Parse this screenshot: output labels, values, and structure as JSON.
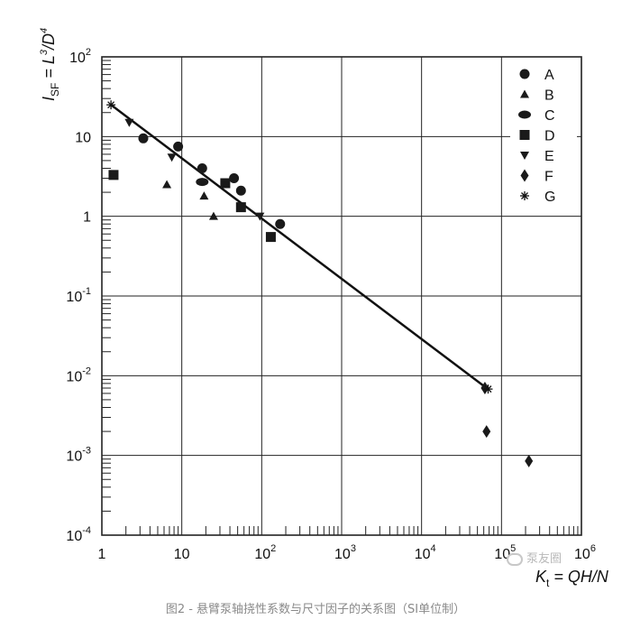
{
  "chart_data": {
    "type": "scatter",
    "xscale": "log",
    "yscale": "log",
    "xlim": [
      1,
      1000000
    ],
    "ylim": [
      0.0001,
      100
    ],
    "grid": true,
    "legend_position": "top-right",
    "x_ticks": [
      {
        "base": "1",
        "exp": ""
      },
      {
        "base": "10",
        "exp": ""
      },
      {
        "base": "10",
        "exp": "2"
      },
      {
        "base": "10",
        "exp": "3"
      },
      {
        "base": "10",
        "exp": "4"
      },
      {
        "base": "10",
        "exp": "5"
      },
      {
        "base": "10",
        "exp": "6"
      }
    ],
    "y_ticks": [
      {
        "base": "10",
        "exp": "2"
      },
      {
        "base": "10",
        "exp": ""
      },
      {
        "base": "1",
        "exp": ""
      },
      {
        "base": "10",
        "exp": "-1"
      },
      {
        "base": "10",
        "exp": "-2"
      },
      {
        "base": "10",
        "exp": "-3"
      },
      {
        "base": "10",
        "exp": "-4"
      }
    ],
    "xlabel": {
      "main": "K",
      "sub": "t",
      "rest": " = QH/N"
    },
    "ylabel": {
      "main": "I",
      "sub": "SF",
      "rest1": " = L",
      "sup1": "3",
      "rest2": "/D",
      "sup2": "4"
    },
    "series": [
      {
        "name": "A",
        "marker": "circle",
        "points": [
          [
            3.3,
            9.5
          ],
          [
            9.0,
            7.5
          ],
          [
            18,
            4.0
          ],
          [
            45,
            3.0
          ],
          [
            55,
            2.1
          ],
          [
            170,
            0.8
          ]
        ]
      },
      {
        "name": "B",
        "marker": "triangle-up",
        "points": [
          [
            6.5,
            2.5
          ],
          [
            19,
            1.8
          ],
          [
            25,
            1.0
          ]
        ]
      },
      {
        "name": "C",
        "marker": "ellipse",
        "points": [
          [
            18,
            2.7
          ]
        ]
      },
      {
        "name": "D",
        "marker": "square",
        "points": [
          [
            1.4,
            3.3
          ],
          [
            35,
            2.6
          ],
          [
            55,
            1.3
          ],
          [
            130,
            0.55
          ]
        ]
      },
      {
        "name": "E",
        "marker": "triangle-down",
        "points": [
          [
            2.2,
            15
          ],
          [
            7.5,
            5.5
          ],
          [
            95,
            1.0
          ]
        ]
      },
      {
        "name": "F",
        "marker": "diamond",
        "points": [
          [
            62000,
            0.007
          ],
          [
            65000,
            0.002
          ],
          [
            220000,
            0.00085
          ]
        ]
      },
      {
        "name": "G",
        "marker": "asterisk",
        "points": [
          [
            1.3,
            25
          ],
          [
            68000,
            0.0068
          ]
        ]
      }
    ],
    "fit_line": {
      "x": [
        1.3,
        65000
      ],
      "y": [
        25,
        0.007
      ]
    }
  },
  "caption": "图2 - 悬臂泵轴挠性系数与尺寸因子的关系图（SI单位制）",
  "watermark": "泵友圈"
}
